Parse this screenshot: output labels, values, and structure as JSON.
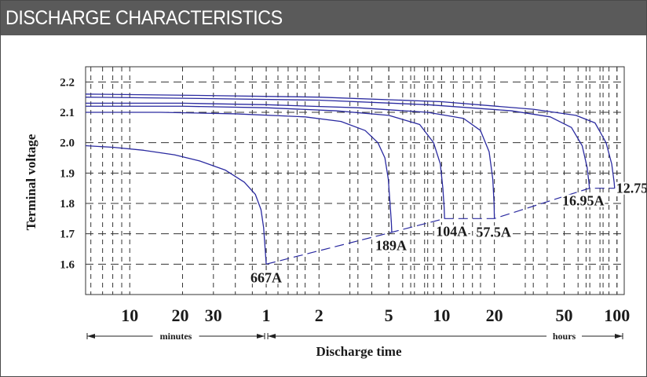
{
  "header": {
    "title": "DISCHARGE CHARACTERISTICS"
  },
  "colors": {
    "header_bg": "#5a5a5a",
    "curve": "#2a2aa0",
    "grid": "#333333",
    "text": "#1a1a1a"
  },
  "chart_data": {
    "type": "line",
    "title": "",
    "xlabel": "Discharge time",
    "ylabel": "Terminal voltage",
    "x_scale": "log",
    "x_unit_note": "x values in minutes",
    "xlim": [
      5.6,
      6600
    ],
    "ylim": [
      1.5,
      2.25
    ],
    "grid": true,
    "x_ticks": [
      {
        "value": 10,
        "label": "10"
      },
      {
        "value": 20,
        "label": "20"
      },
      {
        "value": 30,
        "label": "30"
      },
      {
        "value": 60,
        "label": "1"
      },
      {
        "value": 120,
        "label": "2"
      },
      {
        "value": 300,
        "label": "5"
      },
      {
        "value": 600,
        "label": "10"
      },
      {
        "value": 1200,
        "label": "20"
      },
      {
        "value": 3000,
        "label": "50"
      },
      {
        "value": 6000,
        "label": "100"
      }
    ],
    "y_ticks": [
      "1.6",
      "1.7",
      "1.8",
      "1.9",
      "2.0",
      "2.1",
      "2.2"
    ],
    "unit_ranges": [
      {
        "label": "minutes",
        "from": 5.6,
        "to": 60
      },
      {
        "label": "hours",
        "from": 60,
        "to": 6600
      }
    ],
    "series": [
      {
        "name": "667A",
        "x": [
          5.6,
          8,
          12,
          18,
          25,
          35,
          45,
          52,
          56,
          58,
          59,
          60
        ],
        "y": [
          1.99,
          1.985,
          1.975,
          1.96,
          1.94,
          1.91,
          1.87,
          1.83,
          1.78,
          1.72,
          1.66,
          1.6
        ]
      },
      {
        "name": "189A",
        "x": [
          5.6,
          15,
          40,
          100,
          160,
          220,
          260,
          285,
          298,
          305,
          310,
          312
        ],
        "y": [
          2.1,
          2.1,
          2.095,
          2.085,
          2.07,
          2.04,
          2.0,
          1.95,
          1.88,
          1.8,
          1.74,
          1.705
        ]
      },
      {
        "name": "104A",
        "x": [
          5.6,
          20,
          60,
          150,
          300,
          450,
          540,
          590,
          610,
          620,
          624
        ],
        "y": [
          2.12,
          2.12,
          2.115,
          2.105,
          2.09,
          2.06,
          2.0,
          1.93,
          1.85,
          1.79,
          1.75
        ]
      },
      {
        "name": "57.5A",
        "x": [
          5.6,
          20,
          60,
          200,
          500,
          800,
          1000,
          1120,
          1175,
          1195,
          1200
        ],
        "y": [
          2.13,
          2.13,
          2.125,
          2.115,
          2.1,
          2.08,
          2.04,
          1.97,
          1.88,
          1.8,
          1.75
        ]
      },
      {
        "name": "16.95A",
        "x": [
          5.6,
          30,
          120,
          500,
          1500,
          2500,
          3300,
          3800,
          4050,
          4150,
          4180
        ],
        "y": [
          2.15,
          2.145,
          2.14,
          2.125,
          2.105,
          2.085,
          2.05,
          1.99,
          1.92,
          1.87,
          1.85
        ]
      },
      {
        "name": "12.75A",
        "x": [
          5.6,
          30,
          120,
          600,
          2000,
          3500,
          4500,
          5200,
          5600,
          5780,
          5820
        ],
        "y": [
          2.16,
          2.155,
          2.15,
          2.135,
          2.11,
          2.09,
          2.065,
          2.0,
          1.93,
          1.87,
          1.85
        ]
      }
    ],
    "endpoint_line": {
      "x": [
        60,
        312,
        624,
        1200,
        4180,
        5820
      ],
      "y": [
        1.6,
        1.705,
        1.75,
        1.75,
        1.85,
        1.85
      ]
    }
  }
}
